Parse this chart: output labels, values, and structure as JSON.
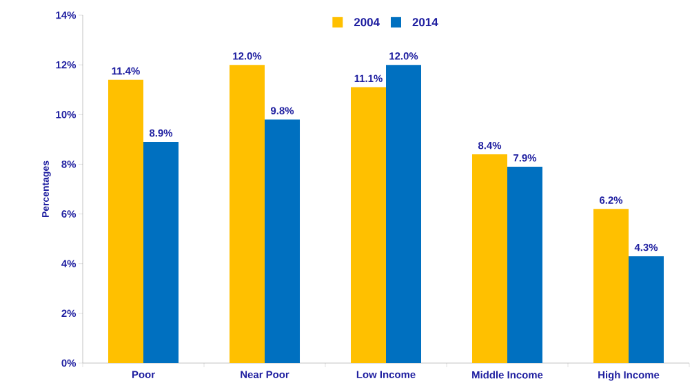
{
  "chart_data": {
    "type": "bar",
    "ylabel": "Percentages",
    "categories": [
      "Poor",
      "Near Poor",
      "Low Income",
      "Middle Income",
      "High Income"
    ],
    "series": [
      {
        "name": "2004",
        "color": "#ffc000",
        "values": [
          11.4,
          12.0,
          11.1,
          8.4,
          6.2
        ],
        "value_labels": [
          "11.4%",
          "12.0%",
          "11.1%",
          "8.4%",
          "6.2%"
        ]
      },
      {
        "name": "2014",
        "color": "#0070c0",
        "values": [
          8.9,
          9.8,
          12.0,
          7.9,
          4.3
        ],
        "value_labels": [
          "8.9%",
          "9.8%",
          "12.0%",
          "7.9%",
          "4.3%"
        ]
      }
    ],
    "ylim": [
      0,
      14
    ],
    "yticks": [
      {
        "value": 0,
        "label": "0%"
      },
      {
        "value": 2,
        "label": "2%"
      },
      {
        "value": 4,
        "label": "4%"
      },
      {
        "value": 6,
        "label": "6%"
      },
      {
        "value": 8,
        "label": "8%"
      },
      {
        "value": 10,
        "label": "10%"
      },
      {
        "value": 12,
        "label": "12%"
      },
      {
        "value": 14,
        "label": "14%"
      }
    ],
    "legend": "top"
  }
}
